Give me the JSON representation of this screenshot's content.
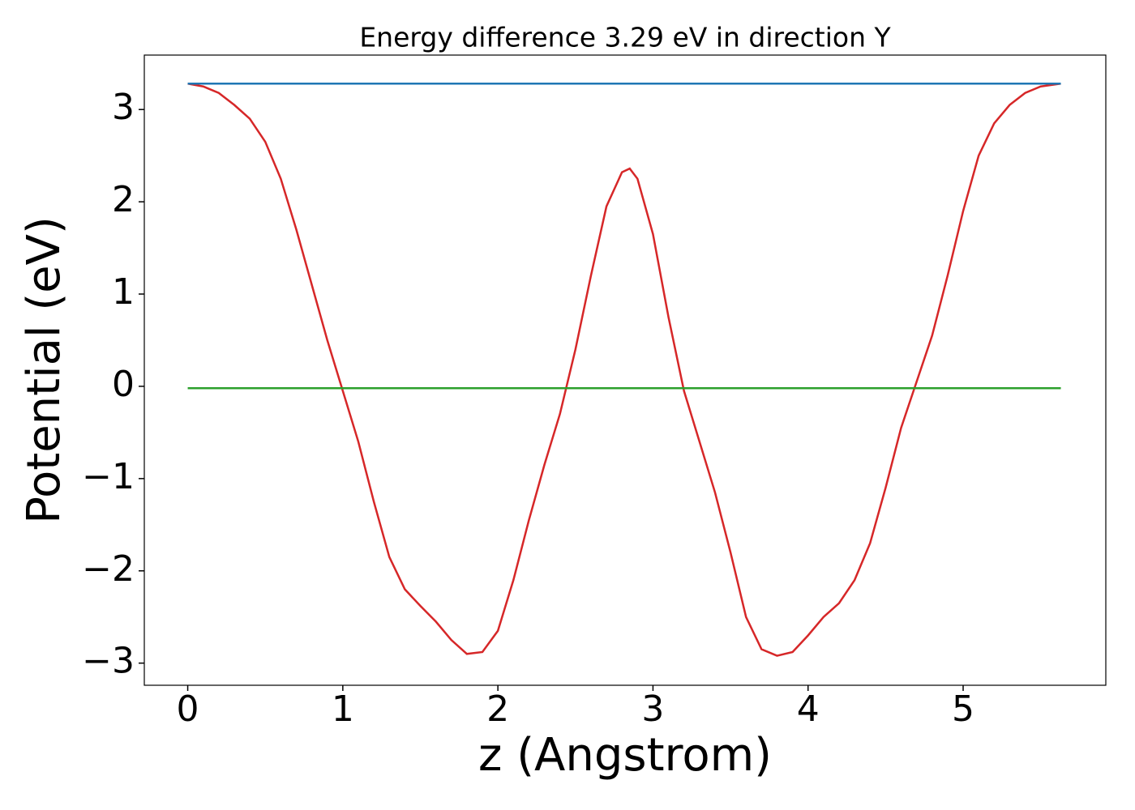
{
  "chart_data": {
    "type": "line",
    "title": "Energy difference 3.29 eV in direction Y",
    "x_label": "z (Angstrom)",
    "y_label": "Potential (eV)",
    "xlim": [
      -0.28,
      5.92
    ],
    "ylim": [
      -3.24,
      3.59
    ],
    "xticks": [
      0,
      1,
      2,
      3,
      4,
      5
    ],
    "yticks": [
      {
        "value": -3,
        "label": "−3"
      },
      {
        "value": -2,
        "label": "−2"
      },
      {
        "value": -1,
        "label": "−1"
      },
      0,
      1,
      2,
      3
    ],
    "series": [
      {
        "color": "#d62728",
        "x": [
          0,
          0.1,
          0.2,
          0.3,
          0.4,
          0.5,
          0.6,
          0.7,
          0.8,
          0.9,
          1.0,
          1.1,
          1.2,
          1.3,
          1.4,
          1.5,
          1.6,
          1.7,
          1.8,
          1.9,
          2.0,
          2.1,
          2.2,
          2.3,
          2.4,
          2.5,
          2.6,
          2.7,
          2.8,
          2.85,
          2.9,
          3.0,
          3.1,
          3.2,
          3.3,
          3.4,
          3.5,
          3.6,
          3.7,
          3.8,
          3.9,
          4.0,
          4.1,
          4.2,
          4.3,
          4.4,
          4.5,
          4.6,
          4.7,
          4.8,
          4.9,
          5.0,
          5.1,
          5.2,
          5.3,
          5.4,
          5.5,
          5.63
        ],
        "values": [
          3.28,
          3.25,
          3.18,
          3.05,
          2.9,
          2.65,
          2.25,
          1.7,
          1.1,
          0.5,
          -0.05,
          -0.6,
          -1.25,
          -1.85,
          -2.2,
          -2.38,
          -2.55,
          -2.75,
          -2.9,
          -2.88,
          -2.65,
          -2.1,
          -1.45,
          -0.85,
          -0.3,
          0.4,
          1.2,
          1.95,
          2.32,
          2.36,
          2.25,
          1.65,
          0.75,
          -0.05,
          -0.6,
          -1.15,
          -1.8,
          -2.5,
          -2.85,
          -2.92,
          -2.88,
          -2.7,
          -2.5,
          -2.35,
          -2.1,
          -1.7,
          -1.1,
          -0.45,
          0.05,
          0.55,
          1.2,
          1.9,
          2.5,
          2.85,
          3.05,
          3.18,
          3.25,
          3.28
        ]
      },
      {
        "color": "#1f77b4",
        "x": [
          0,
          5.63
        ],
        "values": [
          3.28,
          3.28
        ]
      },
      {
        "color": "#2ca02c",
        "x": [
          0,
          5.63
        ],
        "values": [
          -0.02,
          -0.02
        ]
      }
    ]
  }
}
